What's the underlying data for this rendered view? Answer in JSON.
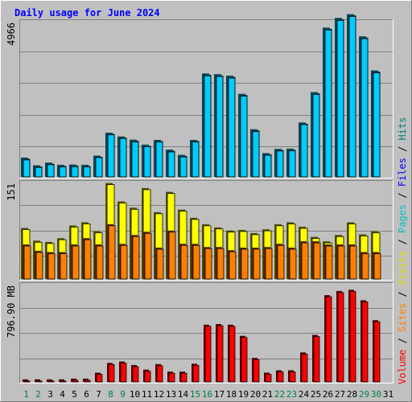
{
  "title": "Daily usage for June 2024",
  "colors": {
    "background": "#c0c0c0",
    "hits": "#00ccff",
    "files": "#00ccff",
    "pages": "#00ccff",
    "visits": "#ffff00",
    "sites": "#ff8000",
    "volume": "#ff0000",
    "weekday_label": "#000000",
    "weekend_label": "#008040",
    "hits_label": "#008080",
    "files_label": "#0000ff",
    "pages_label": "#00c0c0",
    "visits_label": "#e0e000",
    "sites_label": "#ff8000",
    "volume_label": "#ff0000",
    "separator_label": "#000000"
  },
  "legend": {
    "volume": "Volume",
    "sep1": " / ",
    "sites": "Sites",
    "sep2": " / ",
    "visits": "Visits",
    "sep3": " / ",
    "pages": "Pages",
    "sep4": " / ",
    "files": "Files",
    "sep5": " / ",
    "hits": "Hits"
  },
  "chart_data": [
    {
      "type": "bar",
      "panel": "hits_files",
      "ylabel": "4966",
      "ymax": 6200,
      "categories": [
        "1",
        "2",
        "3",
        "4",
        "5",
        "6",
        "7",
        "8",
        "9",
        "10",
        "11",
        "12",
        "13",
        "14",
        "15",
        "16",
        "17",
        "18",
        "19",
        "20",
        "21",
        "22",
        "23",
        "24",
        "25",
        "26",
        "27",
        "28",
        "29",
        "30",
        "31"
      ],
      "weekend_days": [
        "1",
        "2",
        "8",
        "9",
        "15",
        "16",
        "22",
        "23",
        "29",
        "30"
      ],
      "series": [
        {
          "name": "Hits",
          "values": [
            710,
            400,
            510,
            420,
            430,
            420,
            790,
            1710,
            1560,
            1430,
            1230,
            1420,
            1030,
            820,
            1420,
            4090,
            4060,
            4000,
            3270,
            1850,
            890,
            1060,
            1070,
            2120,
            3340,
            5930,
            6320,
            6470,
            5580,
            4210,
            0
          ]
        },
        {
          "name": "Files",
          "values": [
            680,
            380,
            490,
            400,
            410,
            400,
            770,
            1690,
            1540,
            1400,
            1210,
            1400,
            1000,
            800,
            1400,
            4060,
            4030,
            3970,
            3240,
            1820,
            870,
            1040,
            1050,
            2100,
            3310,
            5900,
            6280,
            6440,
            5550,
            4180,
            0
          ]
        }
      ]
    },
    {
      "type": "bar",
      "panel": "visits_sites",
      "ylabel": "151",
      "ymax": 151,
      "categories": [
        "1",
        "2",
        "3",
        "4",
        "5",
        "6",
        "7",
        "8",
        "9",
        "10",
        "11",
        "12",
        "13",
        "14",
        "15",
        "16",
        "17",
        "18",
        "19",
        "20",
        "21",
        "22",
        "23",
        "24",
        "25",
        "26",
        "27",
        "28",
        "29",
        "30",
        "31"
      ],
      "series": [
        {
          "name": "Visits",
          "values": [
            78,
            58,
            56,
            62,
            82,
            87,
            73,
            149,
            120,
            110,
            141,
            103,
            135,
            107,
            94,
            84,
            79,
            74,
            75,
            70,
            76,
            84,
            87,
            80,
            64,
            57,
            67,
            87,
            68,
            73,
            0
          ]
        },
        {
          "name": "Sites",
          "values": [
            52,
            42,
            40,
            40,
            52,
            62,
            52,
            84,
            53,
            67,
            72,
            47,
            74,
            53,
            53,
            48,
            48,
            43,
            47,
            47,
            48,
            53,
            47,
            57,
            57,
            52,
            52,
            52,
            40,
            40,
            0
          ]
        }
      ]
    },
    {
      "type": "bar",
      "panel": "volume",
      "ylabel": "796.90 MB",
      "ymax": 810,
      "unit": "MB",
      "categories": [
        "1",
        "2",
        "3",
        "4",
        "5",
        "6",
        "7",
        "8",
        "9",
        "10",
        "11",
        "12",
        "13",
        "14",
        "15",
        "16",
        "17",
        "18",
        "19",
        "20",
        "21",
        "22",
        "23",
        "24",
        "25",
        "26",
        "27",
        "28",
        "29",
        "30",
        "31"
      ],
      "series": [
        {
          "name": "Volume",
          "values": [
            8,
            8,
            8,
            8,
            14,
            14,
            64,
            146,
            158,
            128,
            90,
            136,
            73,
            73,
            139,
            467,
            472,
            467,
            373,
            188,
            64,
            84,
            84,
            234,
            381,
            715,
            750,
            760,
            672,
            505,
            0
          ]
        }
      ]
    }
  ]
}
